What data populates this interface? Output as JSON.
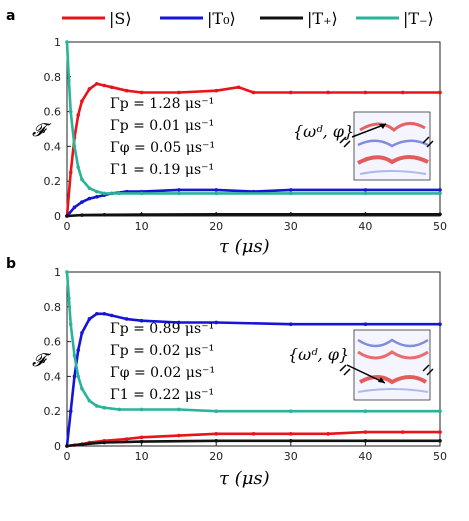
{
  "legend": {
    "items": [
      {
        "label": "|S⟩",
        "color": "#e8141b"
      },
      {
        "label": "|T₀⟩",
        "color": "#1515d6"
      },
      {
        "label": "|T₊⟩",
        "color": "#111111"
      },
      {
        "label": "|T₋⟩",
        "color": "#2bb39a"
      }
    ]
  },
  "colors": {
    "S": "#e8141b",
    "T0": "#1515d6",
    "Tplus": "#111111",
    "Tminus": "#2bb39a"
  },
  "chart_data": [
    {
      "panel_label": "a",
      "type": "line",
      "ylabel": "𝓕",
      "xlabel": "τ (μs)",
      "xlim": [
        0,
        50
      ],
      "ylim": [
        0,
        1
      ],
      "xticks": [
        0,
        10,
        20,
        30,
        40,
        50
      ],
      "yticks": [
        0,
        0.2,
        0.4,
        0.6,
        0.8,
        1
      ],
      "ytick_labels": [
        "0",
        "0.2",
        "0.4",
        "0.6",
        "0.8",
        "1"
      ],
      "params": [
        "Γp = 1.28 μs⁻¹",
        "Γp = 0.01 μs⁻¹",
        "Γφ = 0.05 μs⁻¹",
        "Γ1 = 0.19 μs⁻¹"
      ],
      "inset_annotation": "{ωᵈ, φ}",
      "series": [
        {
          "key": "S",
          "x": [
            0,
            0.5,
            1,
            1.5,
            2,
            3,
            4,
            5,
            6,
            8,
            10,
            15,
            20,
            23,
            25,
            30,
            35,
            40,
            45,
            50
          ],
          "y": [
            0,
            0.25,
            0.45,
            0.58,
            0.66,
            0.73,
            0.76,
            0.75,
            0.74,
            0.72,
            0.71,
            0.71,
            0.72,
            0.74,
            0.71,
            0.71,
            0.71,
            0.71,
            0.71,
            0.71
          ]
        },
        {
          "key": "T0",
          "x": [
            0,
            1,
            2,
            3,
            4,
            5,
            6,
            8,
            10,
            15,
            20,
            25,
            30,
            40,
            50
          ],
          "y": [
            0,
            0.05,
            0.08,
            0.1,
            0.11,
            0.12,
            0.13,
            0.14,
            0.14,
            0.15,
            0.15,
            0.14,
            0.15,
            0.15,
            0.15
          ]
        },
        {
          "key": "Tplus",
          "x": [
            0,
            2,
            5,
            10,
            20,
            30,
            40,
            50
          ],
          "y": [
            0,
            0.005,
            0.007,
            0.008,
            0.01,
            0.01,
            0.01,
            0.01
          ]
        },
        {
          "key": "Tminus",
          "x": [
            0,
            0.25,
            0.5,
            1,
            1.5,
            2,
            3,
            4,
            5,
            7,
            10,
            15,
            20,
            30,
            40,
            50
          ],
          "y": [
            1,
            0.78,
            0.6,
            0.4,
            0.28,
            0.21,
            0.16,
            0.14,
            0.13,
            0.13,
            0.13,
            0.13,
            0.13,
            0.13,
            0.13,
            0.13
          ]
        }
      ]
    },
    {
      "panel_label": "b",
      "type": "line",
      "ylabel": "𝓕",
      "xlabel": "τ (μs)",
      "xlim": [
        0,
        50
      ],
      "ylim": [
        0,
        1
      ],
      "xticks": [
        0,
        10,
        20,
        30,
        40,
        50
      ],
      "yticks": [
        0,
        0.2,
        0.4,
        0.6,
        0.8,
        1
      ],
      "ytick_labels": [
        "0",
        "0.2",
        "0.4",
        "0.6",
        "0.8",
        "1"
      ],
      "params": [
        "Γp = 0.89 μs⁻¹",
        "Γp = 0.02 μs⁻¹",
        "Γφ = 0.02 μs⁻¹",
        "Γ1 = 0.22 μs⁻¹"
      ],
      "inset_annotation": "{ωᵈ, φ}",
      "series": [
        {
          "key": "S",
          "x": [
            0,
            1,
            2,
            3,
            5,
            8,
            10,
            15,
            20,
            25,
            30,
            35,
            40,
            45,
            50
          ],
          "y": [
            0,
            0.005,
            0.01,
            0.02,
            0.03,
            0.04,
            0.05,
            0.06,
            0.07,
            0.07,
            0.07,
            0.07,
            0.08,
            0.08,
            0.08
          ]
        },
        {
          "key": "T0",
          "x": [
            0,
            0.5,
            1,
            1.5,
            2,
            3,
            4,
            5,
            6,
            8,
            10,
            15,
            20,
            30,
            40,
            50
          ],
          "y": [
            0,
            0.2,
            0.4,
            0.55,
            0.65,
            0.73,
            0.76,
            0.76,
            0.75,
            0.73,
            0.72,
            0.71,
            0.71,
            0.7,
            0.7,
            0.7
          ]
        },
        {
          "key": "Tplus",
          "x": [
            0,
            2,
            5,
            10,
            20,
            30,
            40,
            50
          ],
          "y": [
            0,
            0.01,
            0.02,
            0.025,
            0.03,
            0.03,
            0.03,
            0.03
          ]
        },
        {
          "key": "Tminus",
          "x": [
            0,
            0.25,
            0.5,
            1,
            1.5,
            2,
            3,
            4,
            5,
            7,
            10,
            15,
            20,
            30,
            40,
            50
          ],
          "y": [
            1,
            0.85,
            0.7,
            0.52,
            0.4,
            0.33,
            0.26,
            0.23,
            0.22,
            0.21,
            0.21,
            0.21,
            0.2,
            0.2,
            0.2,
            0.2
          ]
        }
      ]
    }
  ]
}
